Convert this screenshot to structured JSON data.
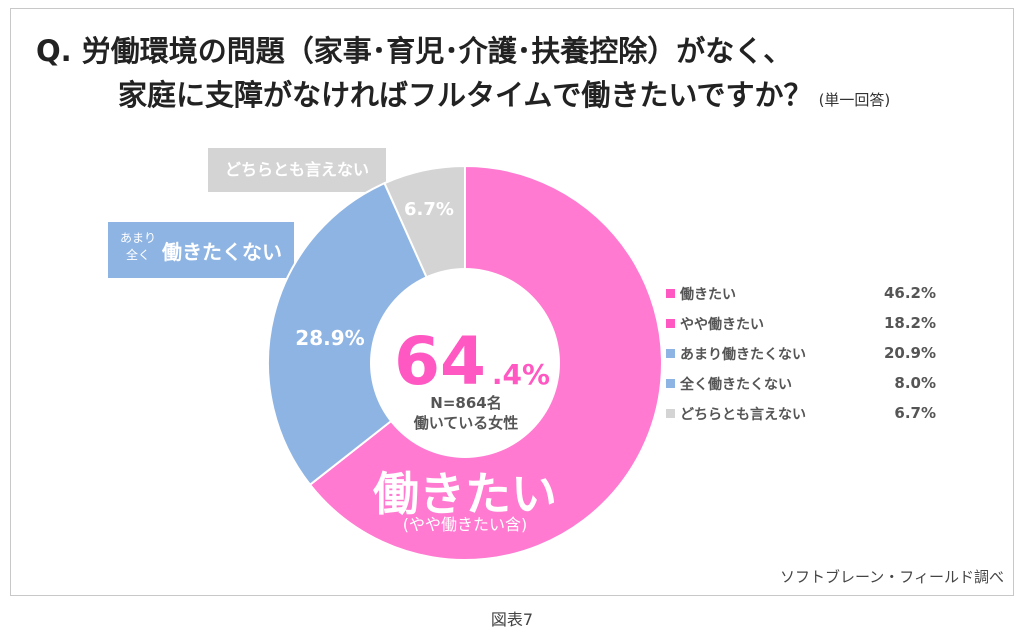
{
  "title": {
    "line1": "Q.  労働環境の問題（家事･育児･介護･扶養控除）がなく、",
    "line2": "家庭に支障がなければフルタイムで働きたいですか？",
    "note": "(単一回答)"
  },
  "colors": {
    "want": "#ff7ad0",
    "not": "#8eb4e3",
    "neutral": "#d4d4d4",
    "center_number": "#ff58c2",
    "legend_pink": "#ff58c2",
    "legend_blue": "#8eb4e3",
    "legend_gray": "#d4d4d4"
  },
  "chart_data": {
    "type": "pie",
    "donut_segments": [
      {
        "value": 64.4,
        "color": "#ff7ad0"
      },
      {
        "value": 28.9,
        "color": "#8eb4e3"
      },
      {
        "value": 6.7,
        "color": "#d4d4d4"
      }
    ],
    "segment_labels": {
      "not": "28.9%",
      "neutral": "6.7%"
    },
    "center": {
      "big": "64",
      "decimal": ".4%",
      "sample": "N=864名",
      "subject": "働いている女性"
    },
    "pink_label": {
      "main": "働きたい",
      "sub": "(やや働きたい含)"
    },
    "legend": [
      {
        "label": "働きたい",
        "value": "46.2%",
        "color": "#ff58c2"
      },
      {
        "label": "やや働きたい",
        "value": "18.2%",
        "color": "#ff58c2"
      },
      {
        "label": "あまり働きたくない",
        "value": "20.9%",
        "color": "#8eb4e3"
      },
      {
        "label": "全く働きたくない",
        "value": "8.0%",
        "color": "#8eb4e3"
      },
      {
        "label": "どちらとも言えない",
        "value": "6.7%",
        "color": "#d4d4d4"
      }
    ]
  },
  "callouts": {
    "dont_know": "どちらとも言えない",
    "not_small_1": "あまり",
    "not_small_2": "全く",
    "not_main": "働きたくない"
  },
  "source": "ソフトブレーン・フィールド調べ",
  "caption": "図表7"
}
